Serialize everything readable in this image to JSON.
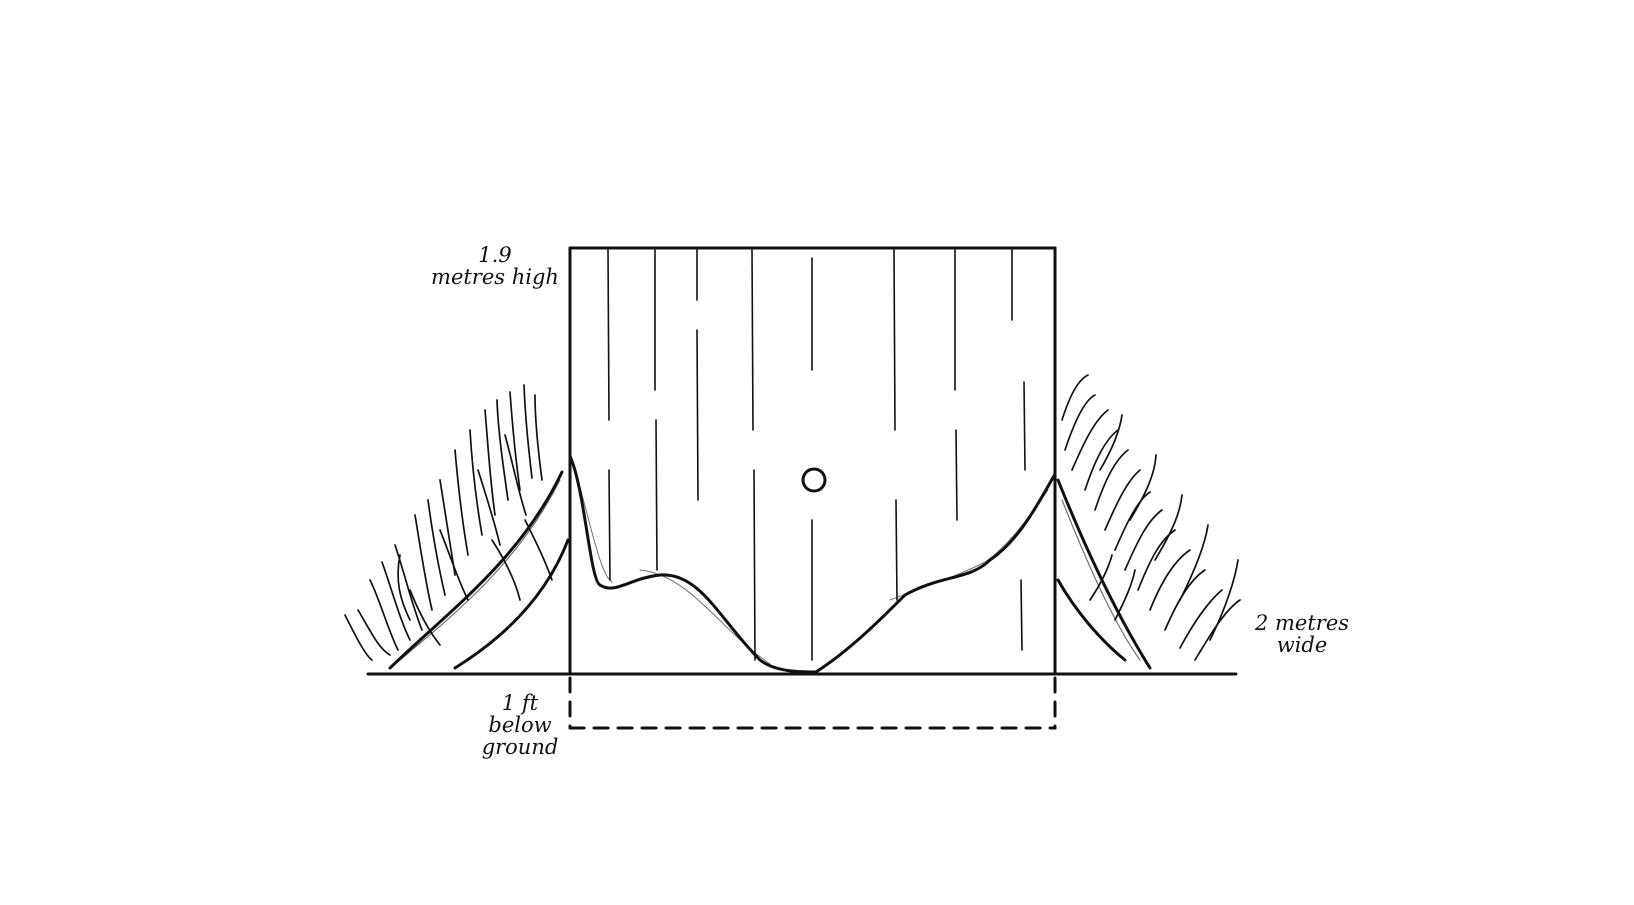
{
  "labels": {
    "height": {
      "line1": "1.9",
      "line2": "metres high"
    },
    "width": {
      "line1": "2 metres",
      "line2": "wide"
    },
    "depth": {
      "line1": "1 ft",
      "line2": "below",
      "line3": "ground"
    }
  },
  "colors": {
    "ink": "#111111",
    "background": "#ffffff"
  }
}
